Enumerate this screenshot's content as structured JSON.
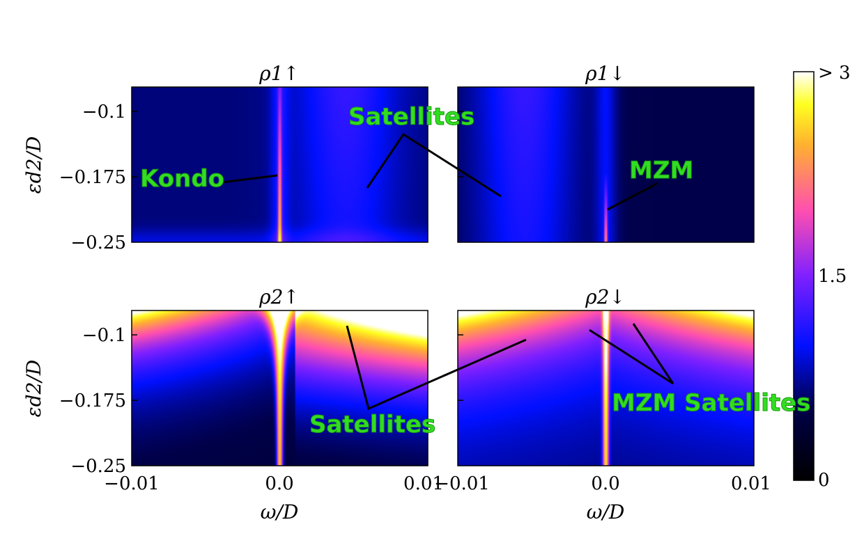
{
  "chart_data": {
    "type": "heatmap",
    "colormap": "gnuplot2",
    "panels": [
      {
        "title": "ρ1↑",
        "xlim": [
          -0.01,
          0.01
        ],
        "ylim": [
          -0.25,
          -0.05
        ],
        "peak_x": 0.0,
        "kind": "kondo"
      },
      {
        "title": "ρ1↓",
        "xlim": [
          -0.01,
          0.01
        ],
        "ylim": [
          -0.25,
          -0.05
        ],
        "peak_x": 0.0,
        "kind": "mzm"
      },
      {
        "title": "ρ2↑",
        "xlim": [
          -0.01,
          0.01
        ],
        "ylim": [
          -0.25,
          -0.05
        ],
        "peak_x": 0.0,
        "kind": "bright2u"
      },
      {
        "title": "ρ2↓",
        "xlim": [
          -0.01,
          0.01
        ],
        "ylim": [
          -0.25,
          -0.05
        ],
        "peak_x": 0.0,
        "kind": "bright2d"
      }
    ],
    "yticks": [
      -0.1,
      -0.175,
      -0.25
    ],
    "ytick_labels": [
      "−0.1",
      "−0.175",
      "−0.25"
    ],
    "xticks": [
      -0.01,
      0.0,
      0.01
    ],
    "xtick_labels": [
      "−0.01",
      "0.0",
      "0.01"
    ],
    "ylabel": "εd2/D",
    "xlabel": "ω/D",
    "colorbar": {
      "range": [
        0,
        3
      ],
      "tick_labels": [
        "0",
        "1.5",
        "> 3"
      ]
    },
    "annotations": [
      {
        "text": "Satellites",
        "panel": 0
      },
      {
        "text": "Kondo",
        "panel": 0
      },
      {
        "text": "MZM",
        "panel": 1
      },
      {
        "text": "Satellites",
        "panel": 2
      },
      {
        "text": "MZM Satellites",
        "panel": 3
      }
    ]
  }
}
